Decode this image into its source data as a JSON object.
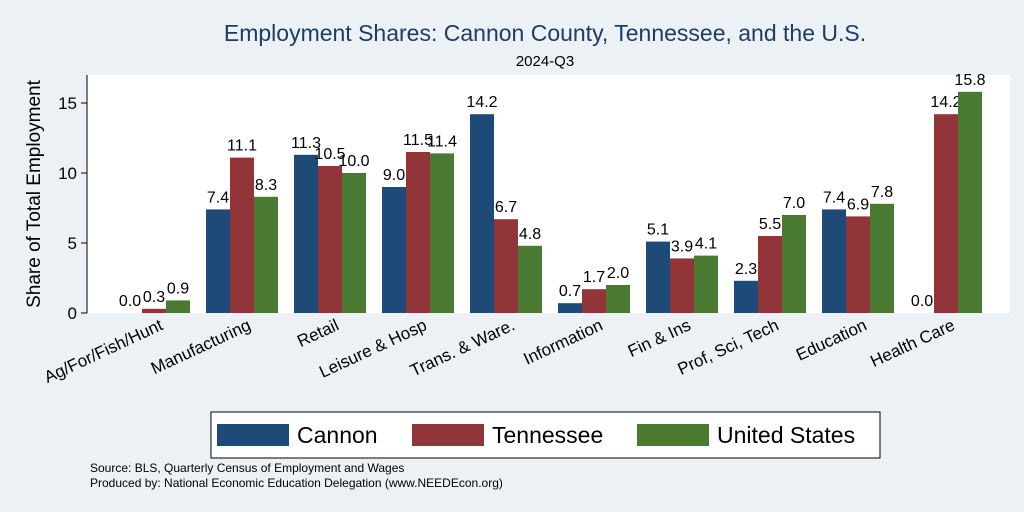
{
  "chart_data": {
    "type": "bar",
    "title": "Employment Shares: Cannon County, Tennessee, and the U.S.",
    "subtitle": "2024-Q3",
    "ylabel": "Share of Total Employment",
    "xlabel": "",
    "ylim": [
      0,
      17
    ],
    "yticks": [
      0,
      5,
      10,
      15
    ],
    "grid": false,
    "legend_position": "bottom",
    "categories": [
      "Ag/For/Fish/Hunt",
      "Manufacturing",
      "Retail",
      "Leisure & Hosp",
      "Trans. & Ware.",
      "Information",
      "Fin & Ins",
      "Prof, Sci, Tech",
      "Education",
      "Health Care"
    ],
    "series": [
      {
        "name": "Cannon",
        "color": "#1e4a78",
        "values": [
          0.0,
          7.4,
          11.3,
          9.0,
          14.2,
          0.7,
          5.1,
          2.3,
          7.4,
          0.0
        ],
        "labels": [
          "0.0",
          "7.4",
          "11.3",
          "9.0",
          "14.2",
          "0.7",
          "5.1",
          "2.3",
          "7.4",
          "0.0"
        ]
      },
      {
        "name": "Tennessee",
        "color": "#923539",
        "values": [
          0.3,
          11.1,
          10.5,
          11.5,
          6.7,
          1.7,
          3.9,
          5.5,
          6.9,
          14.2
        ],
        "labels": [
          "0.3",
          "11.1",
          "10.5",
          "11.5",
          "6.7",
          "1.7",
          "3.9",
          "5.5",
          "6.9",
          "14.2"
        ]
      },
      {
        "name": "United States",
        "color": "#4a7a32",
        "values": [
          0.9,
          8.3,
          10.0,
          11.4,
          4.8,
          2.0,
          4.1,
          7.0,
          7.8,
          15.8
        ],
        "labels": [
          "0.9",
          "8.3",
          "10.0",
          "11.4",
          "4.8",
          "2.0",
          "4.1",
          "7.0",
          "7.8",
          "15.8"
        ]
      }
    ]
  },
  "footer": {
    "source": "Source: BLS, Quarterly Census of Employment and Wages",
    "produced_by": "Produced by: National Economic Education Delegation (www.NEEDEcon.org)"
  }
}
